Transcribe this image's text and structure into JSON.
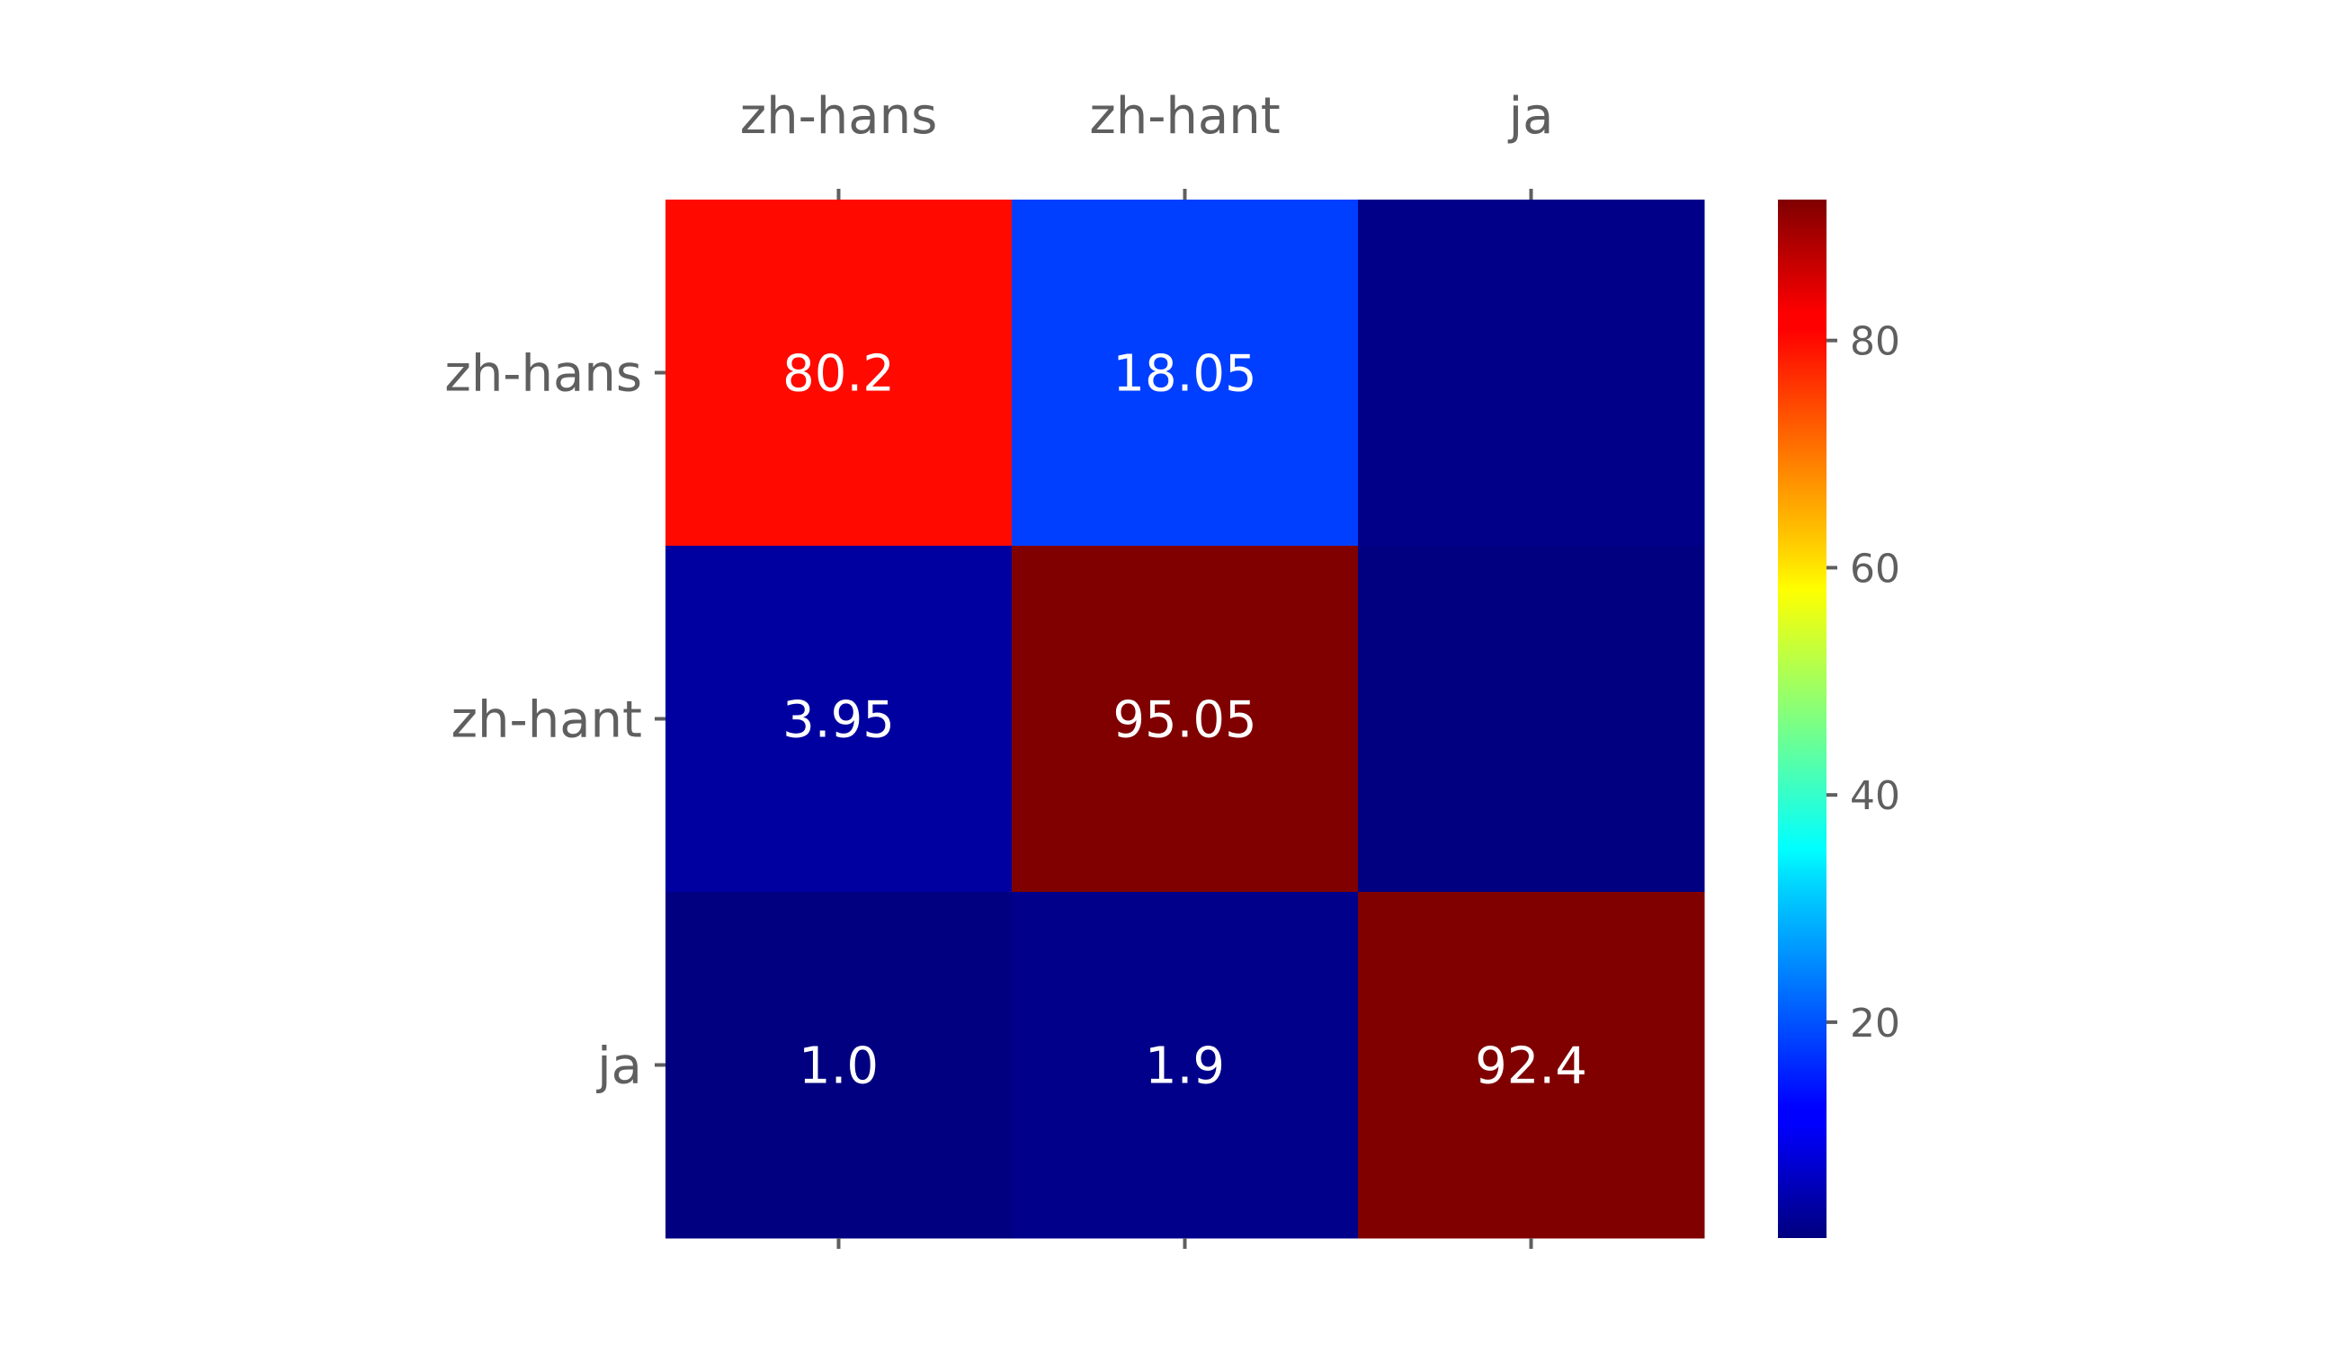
{
  "chart_data": {
    "type": "heatmap",
    "x_categories": [
      "zh-hans",
      "zh-hant",
      "ja"
    ],
    "y_categories": [
      "zh-hans",
      "zh-hant",
      "ja"
    ],
    "values": [
      [
        80.2,
        18.05,
        1.75
      ],
      [
        3.95,
        95.05,
        1.0
      ],
      [
        1.0,
        1.9,
        92.4
      ]
    ],
    "cell_labels": [
      [
        "80.2",
        "18.05",
        ""
      ],
      [
        "3.95",
        "95.05",
        ""
      ],
      [
        "1.0",
        "1.9",
        "92.4"
      ]
    ],
    "colormap": "jet",
    "vmin": 1.0,
    "vmax": 92.4,
    "x_axis_position": "top",
    "colorbar": {
      "ticks": [
        20,
        40,
        60,
        80
      ],
      "position": "right"
    },
    "title": "",
    "xlabel": "",
    "ylabel": ""
  }
}
